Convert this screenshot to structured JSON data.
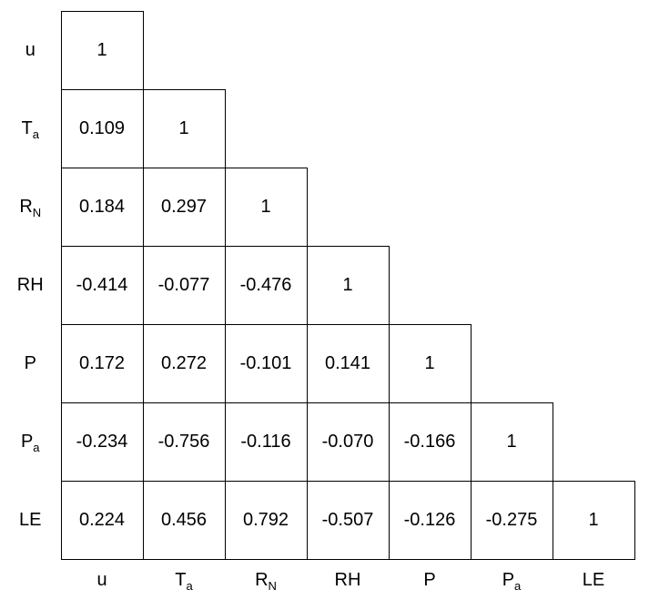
{
  "figure": {
    "kind": "lower-triangular correlation matrix",
    "background": "#ffffff"
  },
  "chart_data": {
    "type": "table",
    "subtype": "correlation-matrix-lower-triangular",
    "title": "",
    "variables": [
      "u",
      "Ta",
      "RN",
      "RH",
      "P",
      "Pa",
      "LE"
    ],
    "variable_labels": [
      {
        "base": "u",
        "sub": ""
      },
      {
        "base": "T",
        "sub": "a"
      },
      {
        "base": "R",
        "sub": "N"
      },
      {
        "base": "RH",
        "sub": ""
      },
      {
        "base": "P",
        "sub": ""
      },
      {
        "base": "P",
        "sub": "a"
      },
      {
        "base": "LE",
        "sub": ""
      }
    ],
    "values": [
      [
        1
      ],
      [
        0.109,
        1
      ],
      [
        0.184,
        0.297,
        1
      ],
      [
        -0.414,
        -0.077,
        -0.476,
        1
      ],
      [
        0.172,
        0.272,
        -0.101,
        0.141,
        1
      ],
      [
        -0.234,
        -0.756,
        -0.116,
        -0.07,
        -0.166,
        1
      ],
      [
        0.224,
        0.456,
        0.792,
        -0.507,
        -0.126,
        -0.275,
        1
      ]
    ],
    "display_values": [
      [
        "1"
      ],
      [
        "0.109",
        "1"
      ],
      [
        "0.184",
        "0.297",
        "1"
      ],
      [
        "-0.414",
        "-0.077",
        "-0.476",
        "1"
      ],
      [
        "0.172",
        "0.272",
        "-0.101",
        "0.141",
        "1"
      ],
      [
        "-0.234",
        "-0.756",
        "-0.116",
        "-0.070",
        "-0.166",
        "1"
      ],
      [
        "0.224",
        "0.456",
        "0.792",
        "-0.507",
        "-0.126",
        "-0.275",
        "1"
      ]
    ],
    "layout": {
      "row_labels_position": "left",
      "column_labels_position": "bottom",
      "grid": "cell borders on lower triangle only"
    },
    "colors": {
      "border": "#000000",
      "text": "#000000",
      "background": "#ffffff"
    }
  }
}
